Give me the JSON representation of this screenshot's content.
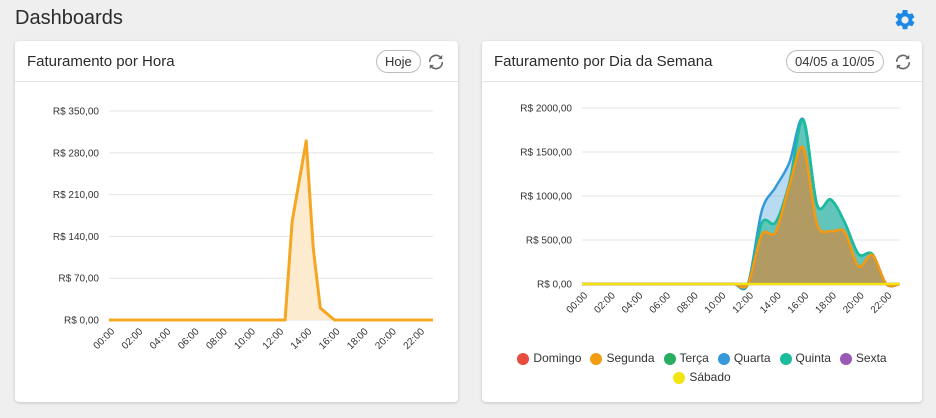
{
  "page": {
    "title": "Dashboards"
  },
  "cards": [
    {
      "title": "Faturamento por Hora",
      "filter": "Hoje"
    },
    {
      "title": "Faturamento por Dia da Semana",
      "filter": "04/05 a 10/05"
    }
  ],
  "colors": {
    "accent_icon": "#1e88e5",
    "hora_line": "#f5a623",
    "hora_fill": "#fdebcf"
  },
  "chart_data": [
    {
      "type": "area",
      "x_ticks": [
        "00:00",
        "02:00",
        "04:00",
        "06:00",
        "08:00",
        "10:00",
        "12:00",
        "14:00",
        "16:00",
        "18:00",
        "20:00",
        "22:00"
      ],
      "y_ticks": [
        "R$ 0,00",
        "R$ 70,00",
        "R$ 140,00",
        "R$ 210,00",
        "R$ 280,00",
        "R$ 350,00"
      ],
      "ylim": [
        0,
        350
      ],
      "grid": true,
      "series": [
        {
          "color": "#f5a623",
          "x": [
            0,
            1,
            2,
            3,
            4,
            5,
            6,
            7,
            8,
            9,
            10,
            11,
            12,
            12.5,
            13,
            14,
            14.5,
            15,
            16,
            17,
            18,
            19,
            20,
            21,
            22,
            23
          ],
          "values": [
            0,
            0,
            0,
            0,
            0,
            0,
            0,
            0,
            0,
            0,
            0,
            0,
            0,
            0,
            165,
            300,
            120,
            20,
            0,
            0,
            0,
            0,
            0,
            0,
            0,
            0
          ]
        }
      ]
    },
    {
      "type": "area",
      "x_ticks": [
        "00:00",
        "02:00",
        "04:00",
        "06:00",
        "08:00",
        "10:00",
        "12:00",
        "14:00",
        "16:00",
        "18:00",
        "20:00",
        "22:00"
      ],
      "y_ticks": [
        "R$ 0,00",
        "R$ 500,00",
        "R$ 1000,00",
        "R$ 1500,00",
        "R$ 2000,00"
      ],
      "ylim": [
        0,
        2000
      ],
      "grid": true,
      "legend": "bottom",
      "x": [
        0,
        1,
        2,
        3,
        4,
        5,
        6,
        7,
        8,
        9,
        10,
        11,
        12,
        13,
        14,
        15,
        16,
        17,
        18,
        19,
        20,
        21,
        22,
        23
      ],
      "series": [
        {
          "name": "Domingo",
          "color": "#e74c3c",
          "values": [
            0,
            0,
            0,
            0,
            0,
            0,
            0,
            0,
            0,
            0,
            0,
            0,
            0,
            560,
            590,
            1120,
            1550,
            680,
            600,
            590,
            200,
            330,
            0,
            0
          ]
        },
        {
          "name": "Segunda",
          "color": "#f39c12",
          "values": [
            0,
            0,
            0,
            0,
            0,
            0,
            0,
            0,
            0,
            0,
            0,
            0,
            0,
            560,
            590,
            1120,
            1550,
            680,
            600,
            590,
            200,
            330,
            0,
            0
          ]
        },
        {
          "name": "Terça",
          "color": "#27ae60",
          "values": [
            0,
            0,
            0,
            0,
            0,
            0,
            0,
            0,
            0,
            0,
            0,
            0,
            0,
            690,
            700,
            1150,
            1870,
            900,
            960,
            700,
            340,
            340,
            0,
            0
          ]
        },
        {
          "name": "Quarta",
          "color": "#3498db",
          "values": [
            0,
            0,
            0,
            0,
            0,
            0,
            0,
            0,
            0,
            0,
            0,
            0,
            0,
            830,
            1100,
            1380,
            1870,
            900,
            960,
            700,
            340,
            340,
            0,
            0
          ]
        },
        {
          "name": "Quinta",
          "color": "#1abc9c",
          "values": [
            0,
            0,
            0,
            0,
            0,
            0,
            0,
            0,
            0,
            0,
            0,
            0,
            0,
            690,
            700,
            1150,
            1870,
            900,
            960,
            700,
            340,
            340,
            0,
            0
          ]
        },
        {
          "name": "Sexta",
          "color": "#9b59b6",
          "values": [
            0,
            0,
            0,
            0,
            0,
            0,
            0,
            0,
            0,
            0,
            0,
            0,
            0,
            0,
            0,
            0,
            0,
            0,
            0,
            0,
            0,
            0,
            0,
            0
          ]
        },
        {
          "name": "Sábado",
          "color": "#f1e40f",
          "values": [
            0,
            0,
            0,
            0,
            0,
            0,
            0,
            0,
            0,
            0,
            0,
            0,
            0,
            0,
            0,
            0,
            0,
            0,
            0,
            0,
            0,
            0,
            0,
            0
          ]
        }
      ]
    }
  ]
}
